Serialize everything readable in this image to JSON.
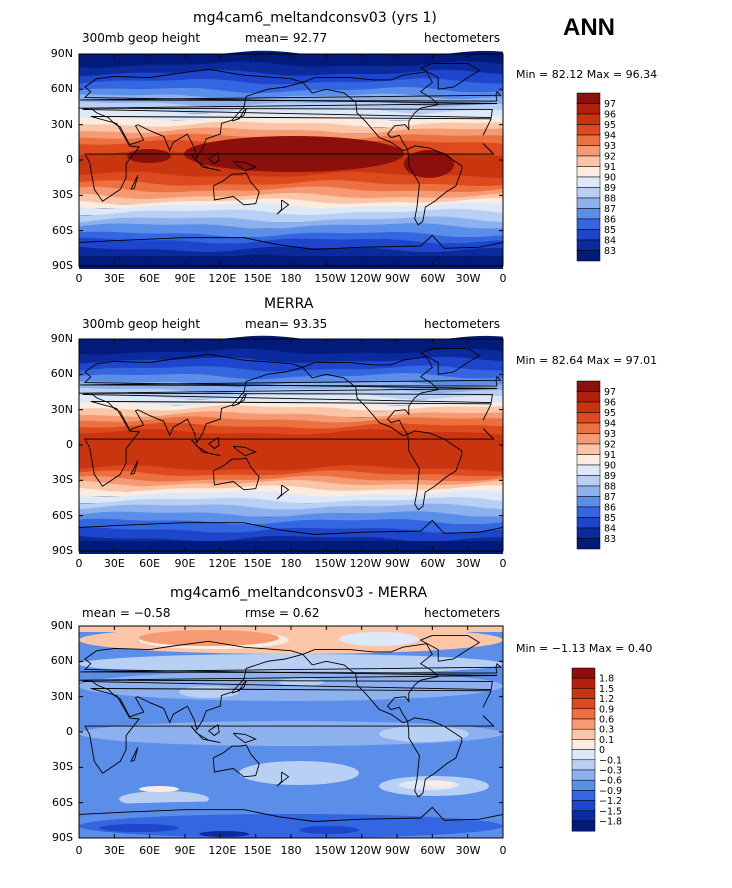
{
  "season": "ANN",
  "x_ticks": [
    "0",
    "30E",
    "60E",
    "90E",
    "120E",
    "150E",
    "180",
    "150W",
    "120W",
    "90W",
    "60W",
    "30W",
    "0"
  ],
  "y_ticks": [
    "90N",
    "60N",
    "30N",
    "0",
    "30S",
    "60S",
    "90S"
  ],
  "panels": [
    {
      "title": "mg4cam6_meltandconsv03 (yrs 1)",
      "left_label": "300mb geop height",
      "center_label": "mean=  92.77",
      "right_label": "hectometers",
      "stats": "Min =  82.12 Max =  96.34",
      "levels": [
        "97",
        "96",
        "95",
        "94",
        "93",
        "92",
        "91",
        "90",
        "89",
        "88",
        "87",
        "86",
        "85",
        "84",
        "83"
      ]
    },
    {
      "title": "MERRA",
      "left_label": "300mb geop height",
      "center_label": "mean=  93.35",
      "right_label": "hectometers",
      "stats": "Min =  82.64 Max =  97.01",
      "levels": [
        "97",
        "96",
        "95",
        "94",
        "93",
        "92",
        "91",
        "90",
        "89",
        "88",
        "87",
        "86",
        "85",
        "84",
        "83"
      ]
    },
    {
      "title": "mg4cam6_meltandconsv03 - MERRA",
      "left_label": "mean =  −0.58",
      "center_label": "rmse =    0.62",
      "right_label": "hectometers",
      "stats": "Min =  −1.13 Max =    0.40",
      "levels": [
        "1.8",
        "1.5",
        "1.2",
        "0.9",
        "0.6",
        "0.3",
        "0.1",
        "0",
        "−0.1",
        "−0.3",
        "−0.6",
        "−0.9",
        "−1.2",
        "−1.5",
        "−1.8"
      ]
    }
  ],
  "colors": {
    "abs_scale": [
      "#8b0f0a",
      "#b4200d",
      "#c8350f",
      "#dd4a1d",
      "#ec7040",
      "#f59a72",
      "#fbc6a8",
      "#fbece2",
      "#dde8f8",
      "#b9d0f5",
      "#8db1ef",
      "#5b8ee8",
      "#3366e0",
      "#1d46cc",
      "#0b2a9e",
      "#021a7a"
    ],
    "diff_scale": [
      "#8b0f0a",
      "#b4200d",
      "#c8350f",
      "#dd4a1d",
      "#ec7040",
      "#f59a72",
      "#fbc6a8",
      "#fbece2",
      "#dde8f8",
      "#b9d0f5",
      "#8db1ef",
      "#5b8ee8",
      "#3366e0",
      "#1d46cc",
      "#0b2a9e",
      "#021a7a"
    ]
  }
}
